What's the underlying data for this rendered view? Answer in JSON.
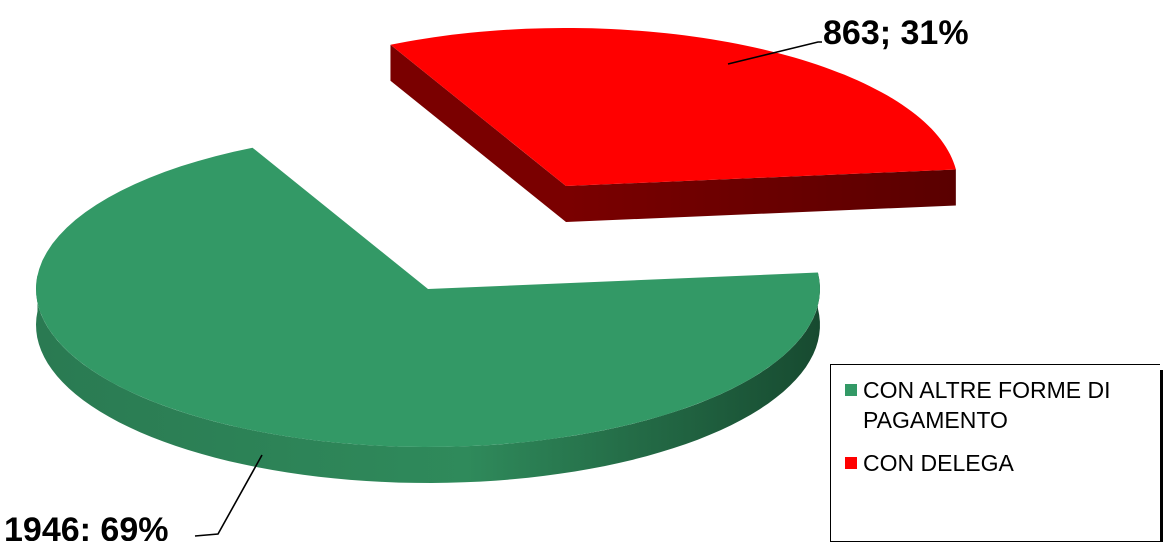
{
  "chart_data": {
    "type": "pie",
    "title": "",
    "three_d": true,
    "exploded": true,
    "slices": [
      {
        "label": "CON ALTRE FORME DI PAGAMENTO",
        "value": 1946,
        "percent": 69,
        "color": "#339966",
        "data_label": "1946; 69%"
      },
      {
        "label": "CON DELEGA",
        "value": 863,
        "percent": 31,
        "color": "#ff0000",
        "data_label": "863; 31%"
      }
    ],
    "legend": {
      "position": "bottom-right",
      "entries": [
        {
          "label": "CON ALTRE FORME DI PAGAMENTO",
          "color": "#339966"
        },
        {
          "label": "CON DELEGA",
          "color": "#ff0000"
        }
      ]
    }
  }
}
